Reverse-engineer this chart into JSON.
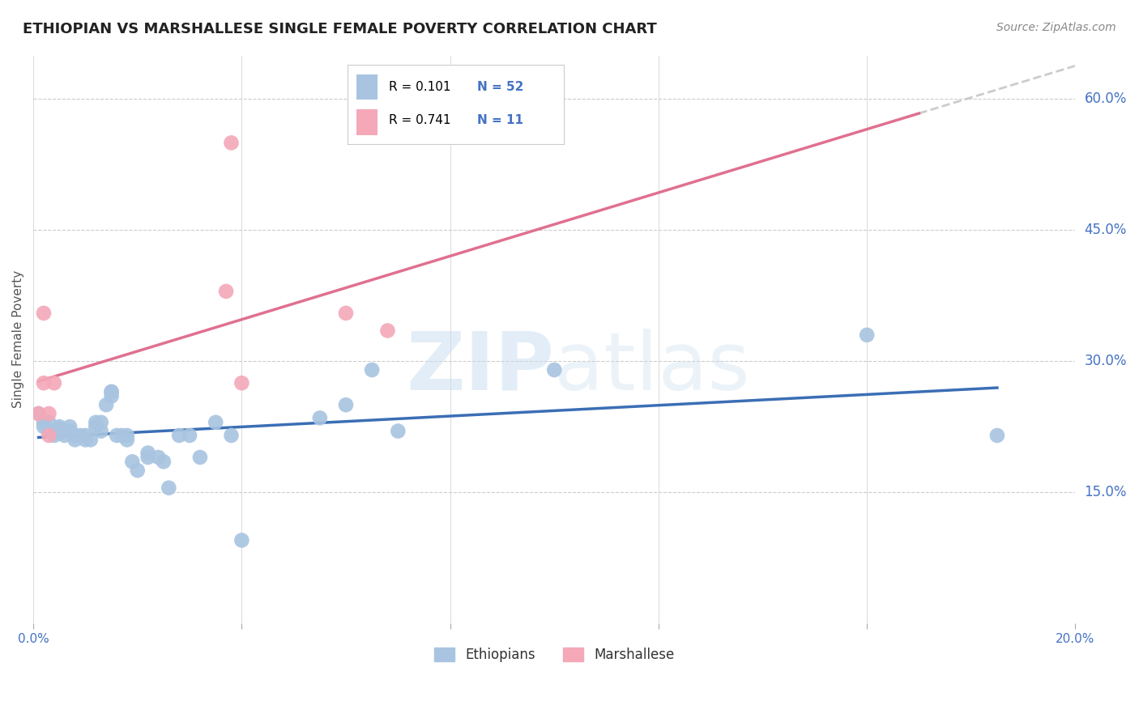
{
  "title": "ETHIOPIAN VS MARSHALLESE SINGLE FEMALE POVERTY CORRELATION CHART",
  "source": "Source: ZipAtlas.com",
  "ylabel": "Single Female Poverty",
  "xlim": [
    0.0,
    0.2
  ],
  "ylim": [
    0.0,
    0.65
  ],
  "yticks": [
    0.15,
    0.3,
    0.45,
    0.6
  ],
  "ytick_labels": [
    "15.0%",
    "30.0%",
    "45.0%",
    "60.0%"
  ],
  "xticks": [
    0.0,
    0.04,
    0.08,
    0.12,
    0.16,
    0.2
  ],
  "xtick_labels": [
    "0.0%",
    "",
    "",
    "",
    "",
    "20.0%"
  ],
  "ethiopian_x": [
    0.001,
    0.002,
    0.002,
    0.003,
    0.003,
    0.004,
    0.004,
    0.005,
    0.005,
    0.005,
    0.006,
    0.006,
    0.007,
    0.007,
    0.008,
    0.008,
    0.009,
    0.01,
    0.01,
    0.011,
    0.012,
    0.012,
    0.013,
    0.013,
    0.014,
    0.015,
    0.015,
    0.015,
    0.016,
    0.017,
    0.018,
    0.018,
    0.019,
    0.02,
    0.022,
    0.022,
    0.024,
    0.025,
    0.026,
    0.028,
    0.03,
    0.032,
    0.035,
    0.038,
    0.04,
    0.055,
    0.06,
    0.065,
    0.07,
    0.1,
    0.16,
    0.185
  ],
  "ethiopian_y": [
    0.24,
    0.23,
    0.225,
    0.22,
    0.23,
    0.22,
    0.215,
    0.225,
    0.218,
    0.222,
    0.215,
    0.22,
    0.225,
    0.22,
    0.21,
    0.215,
    0.215,
    0.215,
    0.21,
    0.21,
    0.23,
    0.225,
    0.23,
    0.22,
    0.25,
    0.265,
    0.265,
    0.26,
    0.215,
    0.215,
    0.215,
    0.21,
    0.185,
    0.175,
    0.195,
    0.19,
    0.19,
    0.185,
    0.155,
    0.215,
    0.215,
    0.19,
    0.23,
    0.215,
    0.095,
    0.235,
    0.25,
    0.29,
    0.22,
    0.29,
    0.33,
    0.215
  ],
  "marshallese_x": [
    0.001,
    0.002,
    0.002,
    0.003,
    0.003,
    0.004,
    0.037,
    0.038,
    0.04,
    0.06,
    0.068
  ],
  "marshallese_y": [
    0.24,
    0.355,
    0.275,
    0.24,
    0.215,
    0.275,
    0.38,
    0.55,
    0.275,
    0.355,
    0.335
  ],
  "r_ethiopian": 0.101,
  "n_ethiopian": 52,
  "r_marshallese": 0.741,
  "n_marshallese": 11,
  "color_ethiopian": "#a8c4e0",
  "color_marshallese": "#f4a8b8",
  "line_color_ethiopian": "#3b6eb5",
  "line_color_marshallese": "#e07090",
  "legend_n_color": "#4472c4",
  "watermark_zip": "ZIP",
  "watermark_atlas": "atlas",
  "background_color": "#ffffff",
  "grid_color": "#cccccc"
}
